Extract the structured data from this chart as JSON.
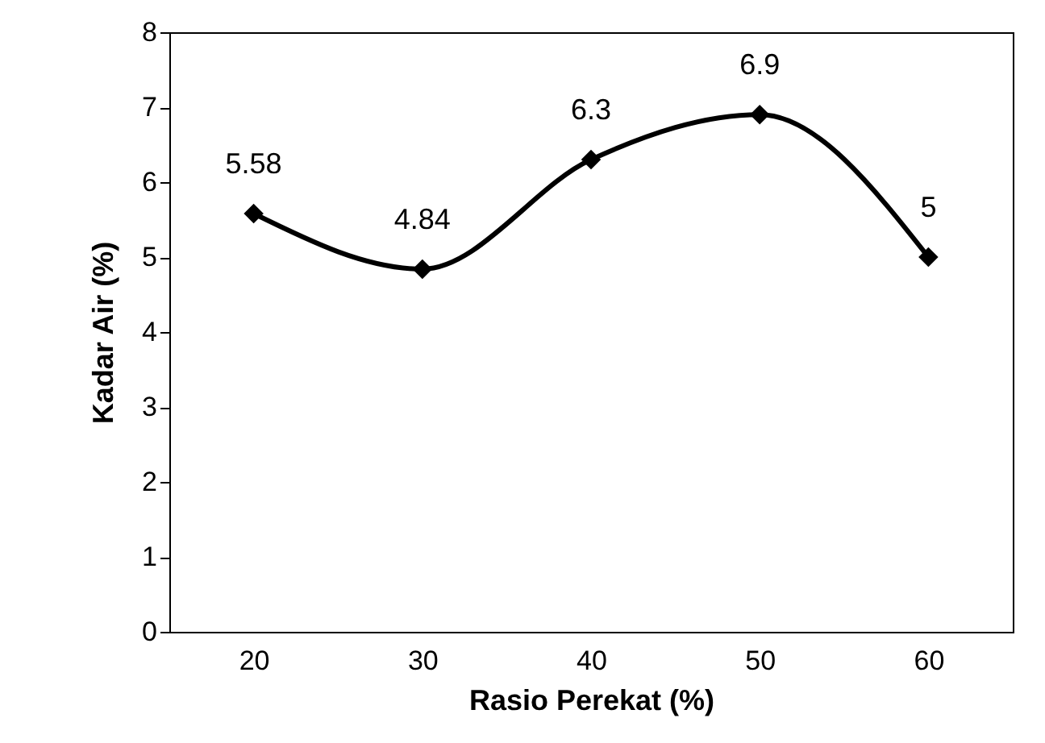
{
  "chart_data": {
    "type": "line",
    "xlabel": "Rasio Perekat (%)",
    "ylabel": "Kadar Air (%)",
    "categories": [
      "20",
      "30",
      "40",
      "50",
      "60"
    ],
    "series": [
      {
        "color": "#000000",
        "values": [
          5.58,
          4.84,
          6.3,
          6.9,
          5
        ]
      }
    ],
    "ylim": [
      0,
      8
    ],
    "yticks": [
      0,
      1,
      2,
      3,
      4,
      5,
      6,
      7,
      8
    ],
    "data_labels": true,
    "marker": "diamond",
    "line_style": "solid"
  }
}
